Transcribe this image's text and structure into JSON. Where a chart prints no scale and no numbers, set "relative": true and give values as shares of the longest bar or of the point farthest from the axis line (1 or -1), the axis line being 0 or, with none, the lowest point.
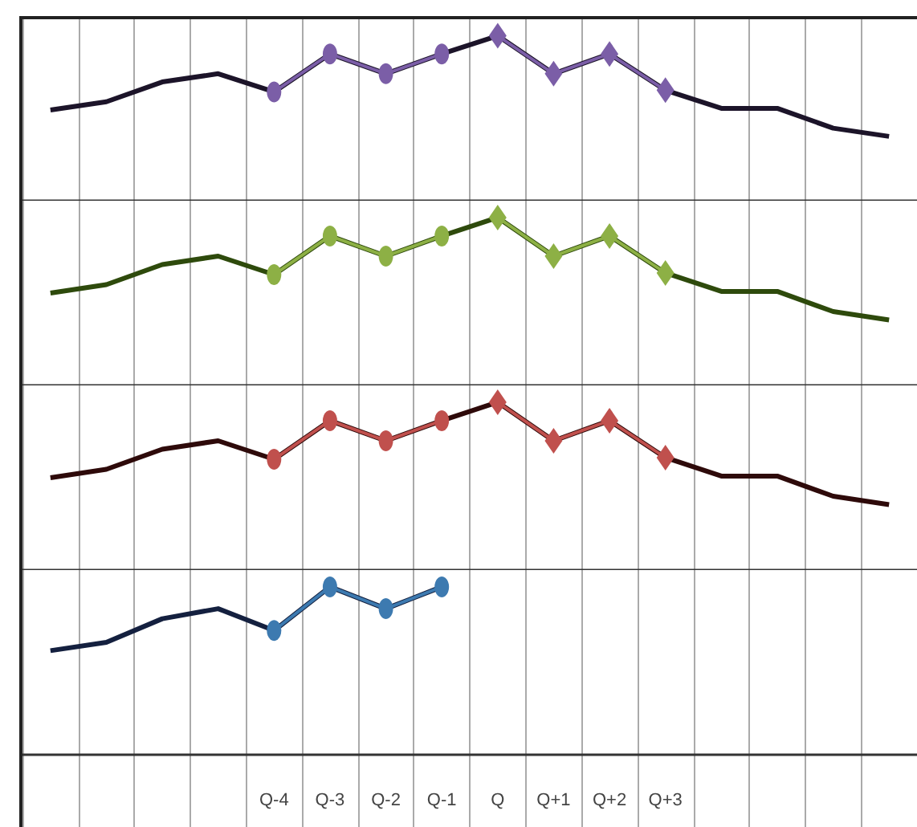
{
  "chart_data": [
    {
      "type": "line",
      "relative": true,
      "grid": "x",
      "tick_labels": false,
      "categories": [
        null,
        null,
        null,
        null,
        null,
        null,
        null,
        null,
        null,
        null,
        null,
        null,
        null,
        null,
        null,
        null
      ],
      "series": [
        {
          "type": "line",
          "marker": "none",
          "color": "#1c1429",
          "values": [
            0.55,
            0.6,
            0.72,
            0.77,
            0.66,
            0.89,
            0.77,
            0.89,
            1,
            0.77,
            0.89,
            0.67,
            0.56,
            0.56,
            0.44,
            0.39
          ]
        },
        {
          "type": "line",
          "marker": "circle",
          "color": "#7b5ea7",
          "values": [
            null,
            null,
            null,
            null,
            0.66,
            0.89,
            0.77,
            0.89,
            null,
            null,
            null,
            null,
            null,
            null,
            null,
            null
          ]
        },
        {
          "type": "line",
          "marker": "diamond",
          "color": "#7b5ea7",
          "values": [
            null,
            null,
            null,
            null,
            null,
            null,
            null,
            null,
            1,
            0.77,
            0.89,
            0.67,
            null,
            null,
            null,
            null
          ]
        }
      ]
    },
    {
      "type": "line",
      "relative": true,
      "grid": "x",
      "tick_labels": false,
      "categories": [
        null,
        null,
        null,
        null,
        null,
        null,
        null,
        null,
        null,
        null,
        null,
        null,
        null,
        null,
        null,
        null
      ],
      "series": [
        {
          "type": "line",
          "marker": "none",
          "color": "#2e4a0c",
          "values": [
            0.55,
            0.6,
            0.72,
            0.77,
            0.66,
            0.89,
            0.77,
            0.89,
            1,
            0.77,
            0.89,
            0.67,
            0.56,
            0.56,
            0.44,
            0.39
          ]
        },
        {
          "type": "line",
          "marker": "circle",
          "color": "#8db045",
          "values": [
            null,
            null,
            null,
            null,
            0.66,
            0.89,
            0.77,
            0.89,
            null,
            null,
            null,
            null,
            null,
            null,
            null,
            null
          ]
        },
        {
          "type": "line",
          "marker": "diamond",
          "color": "#8db045",
          "values": [
            null,
            null,
            null,
            null,
            null,
            null,
            null,
            null,
            1,
            0.77,
            0.89,
            0.67,
            null,
            null,
            null,
            null
          ]
        }
      ]
    },
    {
      "type": "line",
      "relative": true,
      "grid": "x",
      "tick_labels": false,
      "categories": [
        null,
        null,
        null,
        null,
        null,
        null,
        null,
        null,
        null,
        null,
        null,
        null,
        null,
        null,
        null,
        null
      ],
      "series": [
        {
          "type": "line",
          "marker": "none",
          "color": "#2e0a0a",
          "values": [
            0.55,
            0.6,
            0.72,
            0.77,
            0.66,
            0.89,
            0.77,
            0.89,
            1,
            0.77,
            0.89,
            0.67,
            0.56,
            0.56,
            0.44,
            0.39
          ]
        },
        {
          "type": "line",
          "marker": "circle",
          "color": "#c0504d",
          "values": [
            null,
            null,
            null,
            null,
            0.66,
            0.89,
            0.77,
            0.89,
            null,
            null,
            null,
            null,
            null,
            null,
            null,
            null
          ]
        },
        {
          "type": "line",
          "marker": "diamond",
          "color": "#c0504d",
          "values": [
            null,
            null,
            null,
            null,
            null,
            null,
            null,
            null,
            1,
            0.77,
            0.89,
            0.67,
            null,
            null,
            null,
            null
          ]
        }
      ]
    },
    {
      "type": "line",
      "relative": true,
      "grid": "x",
      "tick_labels": "x",
      "categories": [
        null,
        null,
        null,
        null,
        "Q-4",
        "Q-3",
        "Q-2",
        "Q-1",
        "Q",
        "Q+1",
        "Q+2",
        "Q+3",
        null,
        null,
        null,
        null
      ],
      "series": [
        {
          "type": "line",
          "marker": "none",
          "color": "#14203f",
          "values": [
            0.62,
            0.67,
            0.81,
            0.87,
            0.74,
            1,
            0.87,
            1,
            null,
            null,
            null,
            null,
            null,
            null,
            null,
            null
          ]
        },
        {
          "type": "line",
          "marker": "circle",
          "color": "#3d7ab0",
          "values": [
            null,
            null,
            null,
            null,
            0.74,
            1,
            0.87,
            1,
            null,
            null,
            null,
            null,
            null,
            null,
            null,
            null
          ]
        }
      ]
    }
  ]
}
